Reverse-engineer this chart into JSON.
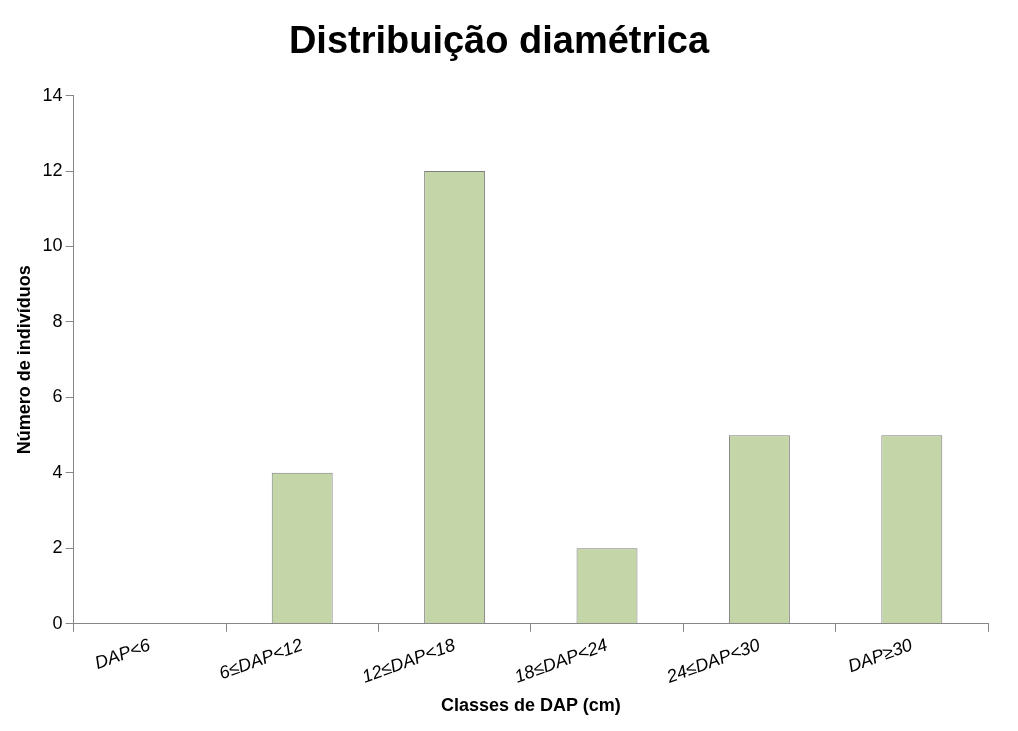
{
  "chart_data": {
    "type": "bar",
    "title": "Distribuição diamétrica",
    "xlabel": "Classes de DAP (cm)",
    "ylabel": "Número de indivíduos",
    "categories": [
      "DAP<6",
      "6≤DAP<12",
      "12≤DAP<18",
      "18≤DAP<24",
      "24≤DAP<30",
      "DAP≥30"
    ],
    "values": [
      0,
      4,
      12,
      2,
      5,
      5
    ],
    "color": "#c4d6a8",
    "ylim": [
      0,
      14
    ],
    "yticks": [
      0,
      2,
      4,
      6,
      8,
      10,
      12,
      14
    ],
    "grid": false,
    "legend": false
  }
}
